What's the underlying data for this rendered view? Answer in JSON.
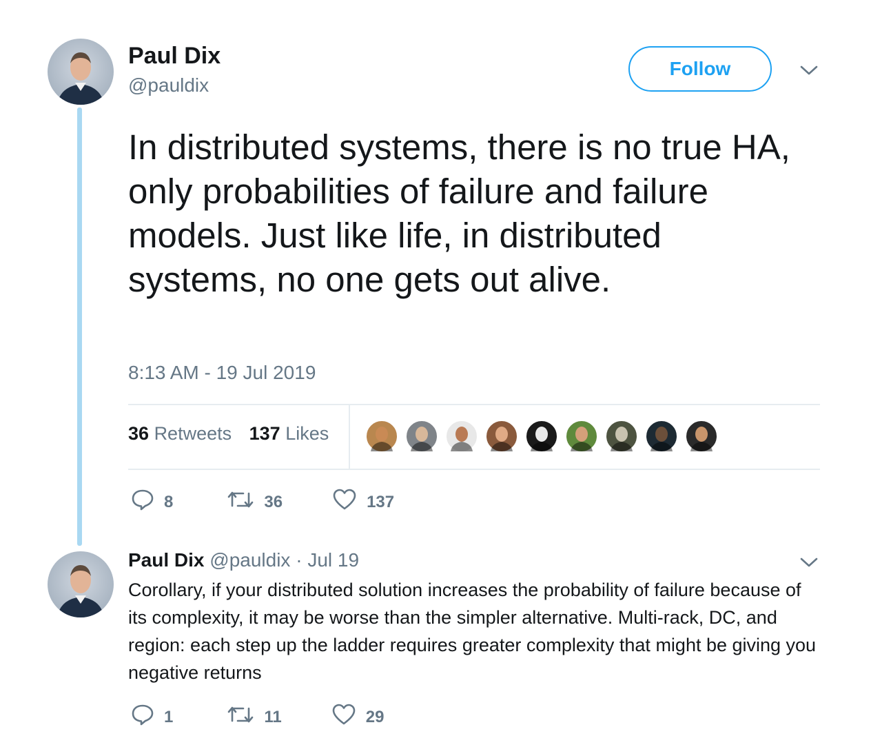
{
  "main_tweet": {
    "name": "Paul Dix",
    "handle": "@pauldix",
    "follow_label": "Follow",
    "text": "In distributed systems, there is no true HA, only probabilities of failure and failure models. Just like life, in distributed systems, no one gets out alive.",
    "timestamp": "8:13 AM - 19 Jul 2019",
    "stats": {
      "retweets_count": "36",
      "retweets_label": "Retweets",
      "likes_count": "137",
      "likes_label": "Likes"
    },
    "actions": {
      "replies": "8",
      "retweets": "36",
      "likes": "137"
    }
  },
  "likers": [
    {
      "skin": "#c98a55",
      "bg": "#b9874f"
    },
    {
      "skin": "#d8b89a",
      "bg": "#7f8489"
    },
    {
      "skin": "#b97a54",
      "bg": "#e8e8e8"
    },
    {
      "skin": "#e0aa85",
      "bg": "#8a5a3c"
    },
    {
      "skin": "#e9e9e9",
      "bg": "#1a1a1a"
    },
    {
      "skin": "#d4a07a",
      "bg": "#5f8a3c"
    },
    {
      "skin": "#c9c3b0",
      "bg": "#4d5340"
    },
    {
      "skin": "#6b4f3a",
      "bg": "#1d2a33"
    },
    {
      "skin": "#c9956b",
      "bg": "#2a2a2a"
    }
  ],
  "reply_tweet": {
    "name": "Paul Dix",
    "handle": "@pauldix",
    "separator": "·",
    "date": "Jul 19",
    "text": "Corollary, if your distributed solution increases the probability of failure because of its complexity, it may be worse than the simpler alternative. Multi-rack, DC, and region:  each step up the ladder requires greater complexity that might be giving you negative returns",
    "actions": {
      "replies": "1",
      "retweets": "11",
      "likes": "29"
    }
  },
  "colors": {
    "accent": "#1da1f2",
    "secondary_text": "#657786",
    "thread_line": "#a9d8f2",
    "divider": "#e6ecf0"
  }
}
